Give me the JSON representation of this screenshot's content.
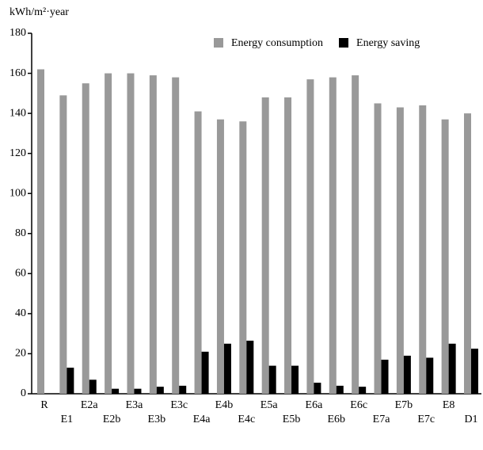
{
  "chart_data": {
    "type": "bar",
    "y_label": "kWh/m²·year",
    "categories": [
      "R",
      "E1",
      "E2a",
      "E2b",
      "E3a",
      "E3b",
      "E3c",
      "E4a",
      "E4b",
      "E4c",
      "E5a",
      "E5b",
      "E6a",
      "E6b",
      "E6c",
      "E7a",
      "E7b",
      "E7c",
      "E8",
      "D1"
    ],
    "series": [
      {
        "name": "Energy consumption",
        "color": "#999999",
        "values": [
          162,
          149,
          155,
          160,
          160,
          159,
          158,
          141,
          137,
          136,
          148,
          148,
          157,
          158,
          159,
          145,
          143,
          144,
          137,
          140
        ]
      },
      {
        "name": "Energy saving",
        "color": "#000000",
        "values": [
          null,
          13,
          7,
          2.5,
          2.5,
          3.5,
          4,
          21,
          25,
          26.5,
          14,
          14,
          5.5,
          4,
          3.5,
          17,
          19,
          18,
          25,
          22.5
        ]
      }
    ],
    "ylim": [
      0,
      180
    ],
    "yticks": [
      0,
      20,
      40,
      60,
      80,
      100,
      120,
      140,
      160,
      180
    ],
    "legend": "upper right"
  }
}
